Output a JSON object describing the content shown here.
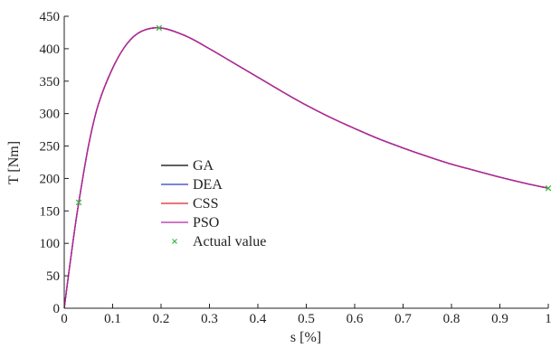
{
  "chart_data": {
    "type": "line",
    "xlabel": "s [%]",
    "ylabel": "T [Nm]",
    "xlim": [
      0,
      1
    ],
    "ylim": [
      0,
      450
    ],
    "xticks": [
      0,
      0.1,
      0.2,
      0.3,
      0.4,
      0.5,
      0.6,
      0.7,
      0.8,
      0.9,
      1
    ],
    "xtick_labels": [
      "0",
      "0.1",
      "0.2",
      "0.3",
      "0.4",
      "0.5",
      "0.6",
      "0.7",
      "0.8",
      "0.9",
      "1"
    ],
    "yticks": [
      0,
      50,
      100,
      150,
      200,
      250,
      300,
      350,
      400,
      450
    ],
    "ytick_labels": [
      "0",
      "50",
      "100",
      "150",
      "200",
      "250",
      "300",
      "350",
      "400",
      "450"
    ],
    "grid": false,
    "legend_position": "center-left",
    "x": [
      0,
      0.01,
      0.02,
      0.03,
      0.05,
      0.07,
      0.1,
      0.13,
      0.16,
      0.2,
      0.25,
      0.3,
      0.35,
      0.4,
      0.45,
      0.5,
      0.55,
      0.6,
      0.65,
      0.7,
      0.75,
      0.8,
      0.85,
      0.9,
      0.95,
      1
    ],
    "series": [
      {
        "name": "GA",
        "color": "#000000",
        "values": [
          0,
          58,
          113,
          163,
          250,
          313,
          370,
          408,
          427,
          432,
          420,
          400,
          378,
          356,
          334,
          313,
          294,
          277,
          261,
          247,
          234,
          222,
          212,
          202,
          193,
          185
        ]
      },
      {
        "name": "DEA",
        "color": "#2b3fb8",
        "values": [
          0,
          58,
          113,
          163,
          250,
          313,
          370,
          408,
          427,
          432,
          420,
          400,
          378,
          356,
          334,
          313,
          294,
          277,
          261,
          247,
          234,
          222,
          212,
          202,
          193,
          185
        ]
      },
      {
        "name": "CSS",
        "color": "#e0202a",
        "values": [
          0,
          58,
          113,
          163,
          250,
          313,
          370,
          408,
          427,
          432,
          420,
          400,
          378,
          356,
          334,
          313,
          294,
          277,
          261,
          247,
          234,
          222,
          212,
          202,
          193,
          185
        ]
      },
      {
        "name": "PSO",
        "color": "#b0279f",
        "values": [
          0,
          58,
          113,
          163,
          250,
          313,
          370,
          408,
          427,
          432,
          420,
          400,
          378,
          356,
          334,
          313,
          294,
          277,
          261,
          247,
          234,
          222,
          212,
          202,
          193,
          185
        ]
      }
    ],
    "points": {
      "name": "Actual value",
      "color": "#3cb83c",
      "marker": "x",
      "x": [
        0.03,
        0.196,
        1.0
      ],
      "y": [
        163,
        432,
        185
      ]
    }
  }
}
